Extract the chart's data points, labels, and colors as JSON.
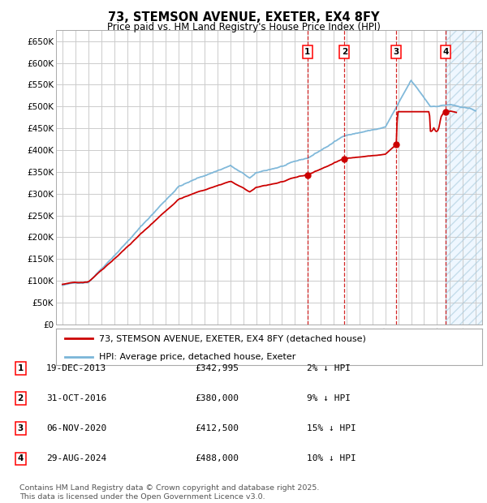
{
  "title": "73, STEMSON AVENUE, EXETER, EX4 8FY",
  "subtitle": "Price paid vs. HM Land Registry's House Price Index (HPI)",
  "ylim": [
    0,
    675000
  ],
  "yticks": [
    0,
    50000,
    100000,
    150000,
    200000,
    250000,
    300000,
    350000,
    400000,
    450000,
    500000,
    550000,
    600000,
    650000
  ],
  "ytick_labels": [
    "£0",
    "£50K",
    "£100K",
    "£150K",
    "£200K",
    "£250K",
    "£300K",
    "£350K",
    "£400K",
    "£450K",
    "£500K",
    "£550K",
    "£600K",
    "£650K"
  ],
  "xlim_start": 1994.5,
  "xlim_end": 2027.5,
  "transactions": [
    {
      "num": 1,
      "year": 2013.97,
      "price": 342995,
      "date": "19-DEC-2013",
      "pct": "2%",
      "dir": "↓"
    },
    {
      "num": 2,
      "year": 2016.83,
      "price": 380000,
      "date": "31-OCT-2016",
      "pct": "9%",
      "dir": "↓"
    },
    {
      "num": 3,
      "year": 2020.85,
      "price": 412500,
      "date": "06-NOV-2020",
      "pct": "15%",
      "dir": "↓"
    },
    {
      "num": 4,
      "year": 2024.66,
      "price": 488000,
      "date": "29-AUG-2024",
      "pct": "10%",
      "dir": "↓"
    }
  ],
  "hpi_color": "#7ab5d8",
  "price_color": "#cc0000",
  "vline_color": "#cc0000",
  "background_color": "#ffffff",
  "grid_color": "#cccccc",
  "footer": "Contains HM Land Registry data © Crown copyright and database right 2025.\nThis data is licensed under the Open Government Licence v3.0.",
  "legend_items": [
    "73, STEMSON AVENUE, EXETER, EX4 8FY (detached house)",
    "HPI: Average price, detached house, Exeter"
  ]
}
